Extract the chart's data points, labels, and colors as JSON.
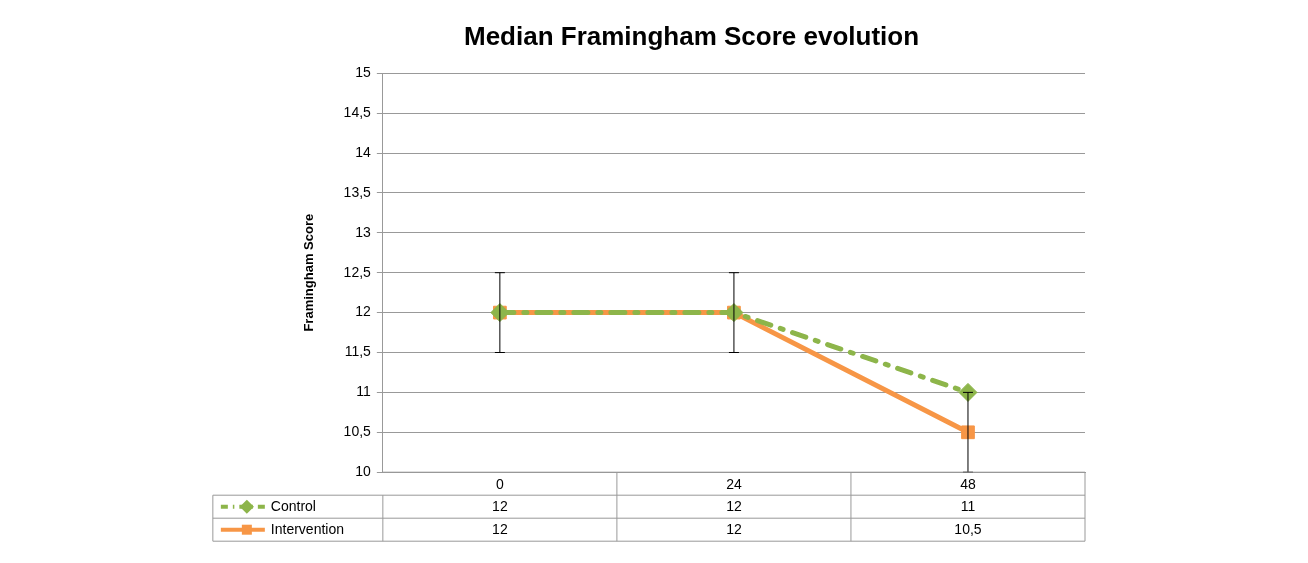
{
  "chart_data": {
    "type": "line",
    "title": "Median Framingham Score evolution",
    "ylabel": "Framingham Score",
    "categories": [
      "0",
      "24",
      "48"
    ],
    "series": [
      {
        "name": "Control",
        "color": "#8db54a",
        "values": [
          12,
          12,
          11
        ],
        "marker": "diamond",
        "line_style": "dashed",
        "value_labels": [
          "12",
          "12",
          "11"
        ]
      },
      {
        "name": "Intervention",
        "color": "#f79646",
        "values": [
          12,
          12,
          10.5
        ],
        "marker": "square",
        "line_style": "solid",
        "errors": [
          0.5,
          0.5,
          0.5
        ],
        "value_labels": [
          "12",
          "12",
          "10,5"
        ]
      }
    ],
    "ylim": [
      10,
      15
    ],
    "yticks": [
      10,
      {
        "value": 10.5,
        "label": "10,5"
      },
      11,
      {
        "value": 11.5,
        "label": "11,5"
      },
      12,
      {
        "value": 12.5,
        "label": "12,5"
      },
      13,
      {
        "value": 13.5,
        "label": "13,5"
      },
      14,
      {
        "value": 14.5,
        "label": "14,5"
      },
      15
    ],
    "grid": "y",
    "legend": "bottom"
  }
}
